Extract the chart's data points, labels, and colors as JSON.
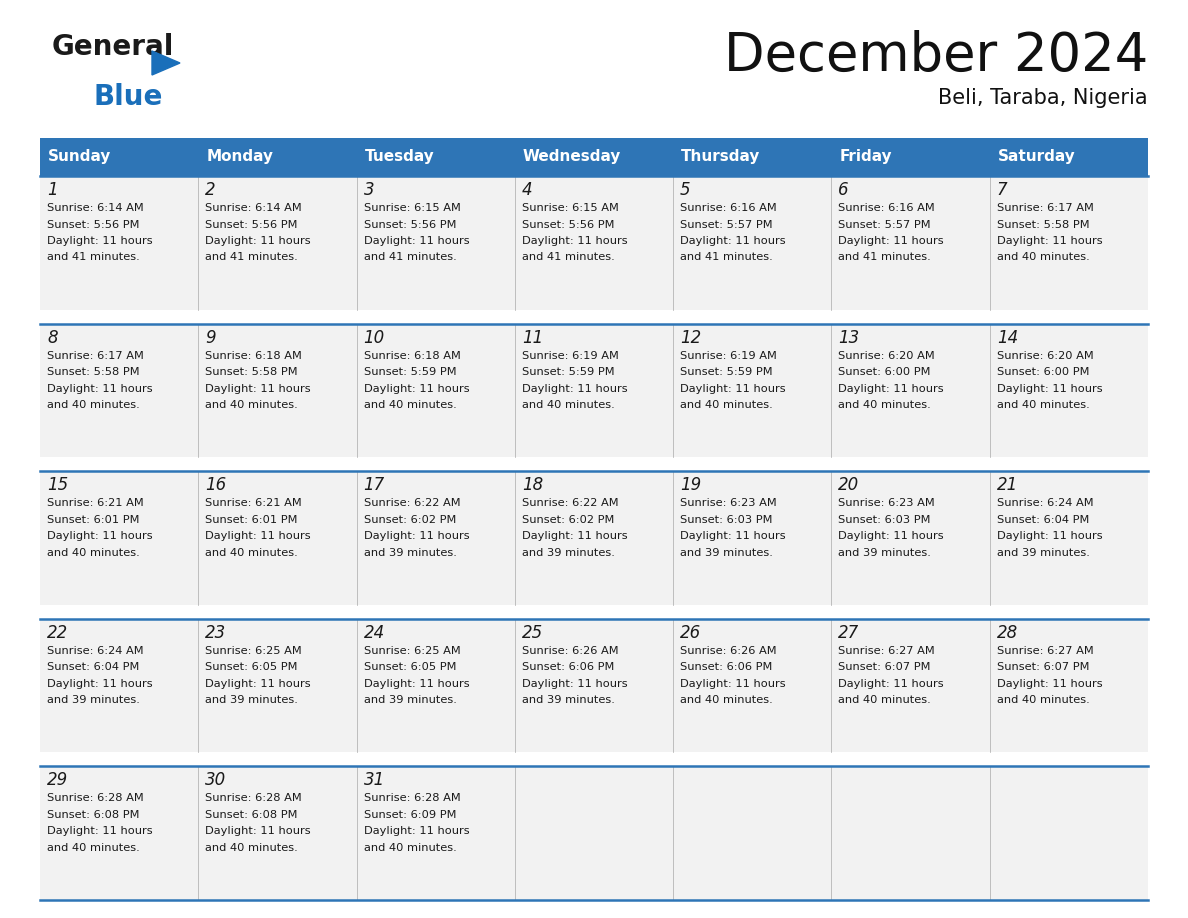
{
  "title": "December 2024",
  "subtitle": "Beli, Taraba, Nigeria",
  "header_color": "#2E75B6",
  "header_text_color": "#FFFFFF",
  "cell_bg_color": "#F2F2F2",
  "gap_color": "#FFFFFF",
  "day_headers": [
    "Sunday",
    "Monday",
    "Tuesday",
    "Wednesday",
    "Thursday",
    "Friday",
    "Saturday"
  ],
  "days": [
    {
      "day": 1,
      "col": 0,
      "row": 0,
      "sunrise": "6:14 AM",
      "sunset": "5:56 PM",
      "daylight": "11 hours and 41 minutes."
    },
    {
      "day": 2,
      "col": 1,
      "row": 0,
      "sunrise": "6:14 AM",
      "sunset": "5:56 PM",
      "daylight": "11 hours and 41 minutes."
    },
    {
      "day": 3,
      "col": 2,
      "row": 0,
      "sunrise": "6:15 AM",
      "sunset": "5:56 PM",
      "daylight": "11 hours and 41 minutes."
    },
    {
      "day": 4,
      "col": 3,
      "row": 0,
      "sunrise": "6:15 AM",
      "sunset": "5:56 PM",
      "daylight": "11 hours and 41 minutes."
    },
    {
      "day": 5,
      "col": 4,
      "row": 0,
      "sunrise": "6:16 AM",
      "sunset": "5:57 PM",
      "daylight": "11 hours and 41 minutes."
    },
    {
      "day": 6,
      "col": 5,
      "row": 0,
      "sunrise": "6:16 AM",
      "sunset": "5:57 PM",
      "daylight": "11 hours and 41 minutes."
    },
    {
      "day": 7,
      "col": 6,
      "row": 0,
      "sunrise": "6:17 AM",
      "sunset": "5:58 PM",
      "daylight": "11 hours and 40 minutes."
    },
    {
      "day": 8,
      "col": 0,
      "row": 1,
      "sunrise": "6:17 AM",
      "sunset": "5:58 PM",
      "daylight": "11 hours and 40 minutes."
    },
    {
      "day": 9,
      "col": 1,
      "row": 1,
      "sunrise": "6:18 AM",
      "sunset": "5:58 PM",
      "daylight": "11 hours and 40 minutes."
    },
    {
      "day": 10,
      "col": 2,
      "row": 1,
      "sunrise": "6:18 AM",
      "sunset": "5:59 PM",
      "daylight": "11 hours and 40 minutes."
    },
    {
      "day": 11,
      "col": 3,
      "row": 1,
      "sunrise": "6:19 AM",
      "sunset": "5:59 PM",
      "daylight": "11 hours and 40 minutes."
    },
    {
      "day": 12,
      "col": 4,
      "row": 1,
      "sunrise": "6:19 AM",
      "sunset": "5:59 PM",
      "daylight": "11 hours and 40 minutes."
    },
    {
      "day": 13,
      "col": 5,
      "row": 1,
      "sunrise": "6:20 AM",
      "sunset": "6:00 PM",
      "daylight": "11 hours and 40 minutes."
    },
    {
      "day": 14,
      "col": 6,
      "row": 1,
      "sunrise": "6:20 AM",
      "sunset": "6:00 PM",
      "daylight": "11 hours and 40 minutes."
    },
    {
      "day": 15,
      "col": 0,
      "row": 2,
      "sunrise": "6:21 AM",
      "sunset": "6:01 PM",
      "daylight": "11 hours and 40 minutes."
    },
    {
      "day": 16,
      "col": 1,
      "row": 2,
      "sunrise": "6:21 AM",
      "sunset": "6:01 PM",
      "daylight": "11 hours and 40 minutes."
    },
    {
      "day": 17,
      "col": 2,
      "row": 2,
      "sunrise": "6:22 AM",
      "sunset": "6:02 PM",
      "daylight": "11 hours and 39 minutes."
    },
    {
      "day": 18,
      "col": 3,
      "row": 2,
      "sunrise": "6:22 AM",
      "sunset": "6:02 PM",
      "daylight": "11 hours and 39 minutes."
    },
    {
      "day": 19,
      "col": 4,
      "row": 2,
      "sunrise": "6:23 AM",
      "sunset": "6:03 PM",
      "daylight": "11 hours and 39 minutes."
    },
    {
      "day": 20,
      "col": 5,
      "row": 2,
      "sunrise": "6:23 AM",
      "sunset": "6:03 PM",
      "daylight": "11 hours and 39 minutes."
    },
    {
      "day": 21,
      "col": 6,
      "row": 2,
      "sunrise": "6:24 AM",
      "sunset": "6:04 PM",
      "daylight": "11 hours and 39 minutes."
    },
    {
      "day": 22,
      "col": 0,
      "row": 3,
      "sunrise": "6:24 AM",
      "sunset": "6:04 PM",
      "daylight": "11 hours and 39 minutes."
    },
    {
      "day": 23,
      "col": 1,
      "row": 3,
      "sunrise": "6:25 AM",
      "sunset": "6:05 PM",
      "daylight": "11 hours and 39 minutes."
    },
    {
      "day": 24,
      "col": 2,
      "row": 3,
      "sunrise": "6:25 AM",
      "sunset": "6:05 PM",
      "daylight": "11 hours and 39 minutes."
    },
    {
      "day": 25,
      "col": 3,
      "row": 3,
      "sunrise": "6:26 AM",
      "sunset": "6:06 PM",
      "daylight": "11 hours and 39 minutes."
    },
    {
      "day": 26,
      "col": 4,
      "row": 3,
      "sunrise": "6:26 AM",
      "sunset": "6:06 PM",
      "daylight": "11 hours and 40 minutes."
    },
    {
      "day": 27,
      "col": 5,
      "row": 3,
      "sunrise": "6:27 AM",
      "sunset": "6:07 PM",
      "daylight": "11 hours and 40 minutes."
    },
    {
      "day": 28,
      "col": 6,
      "row": 3,
      "sunrise": "6:27 AM",
      "sunset": "6:07 PM",
      "daylight": "11 hours and 40 minutes."
    },
    {
      "day": 29,
      "col": 0,
      "row": 4,
      "sunrise": "6:28 AM",
      "sunset": "6:08 PM",
      "daylight": "11 hours and 40 minutes."
    },
    {
      "day": 30,
      "col": 1,
      "row": 4,
      "sunrise": "6:28 AM",
      "sunset": "6:08 PM",
      "daylight": "11 hours and 40 minutes."
    },
    {
      "day": 31,
      "col": 2,
      "row": 4,
      "sunrise": "6:28 AM",
      "sunset": "6:09 PM",
      "daylight": "11 hours and 40 minutes."
    }
  ],
  "logo_color_general": "#1a1a1a",
  "logo_color_blue": "#1a6fba",
  "title_fontsize": 38,
  "subtitle_fontsize": 15,
  "header_fontsize": 11,
  "day_num_fontsize": 12,
  "cell_text_fontsize": 8.2,
  "divider_color": "#2E75B6",
  "line_color_thin": "#aaaaaa"
}
